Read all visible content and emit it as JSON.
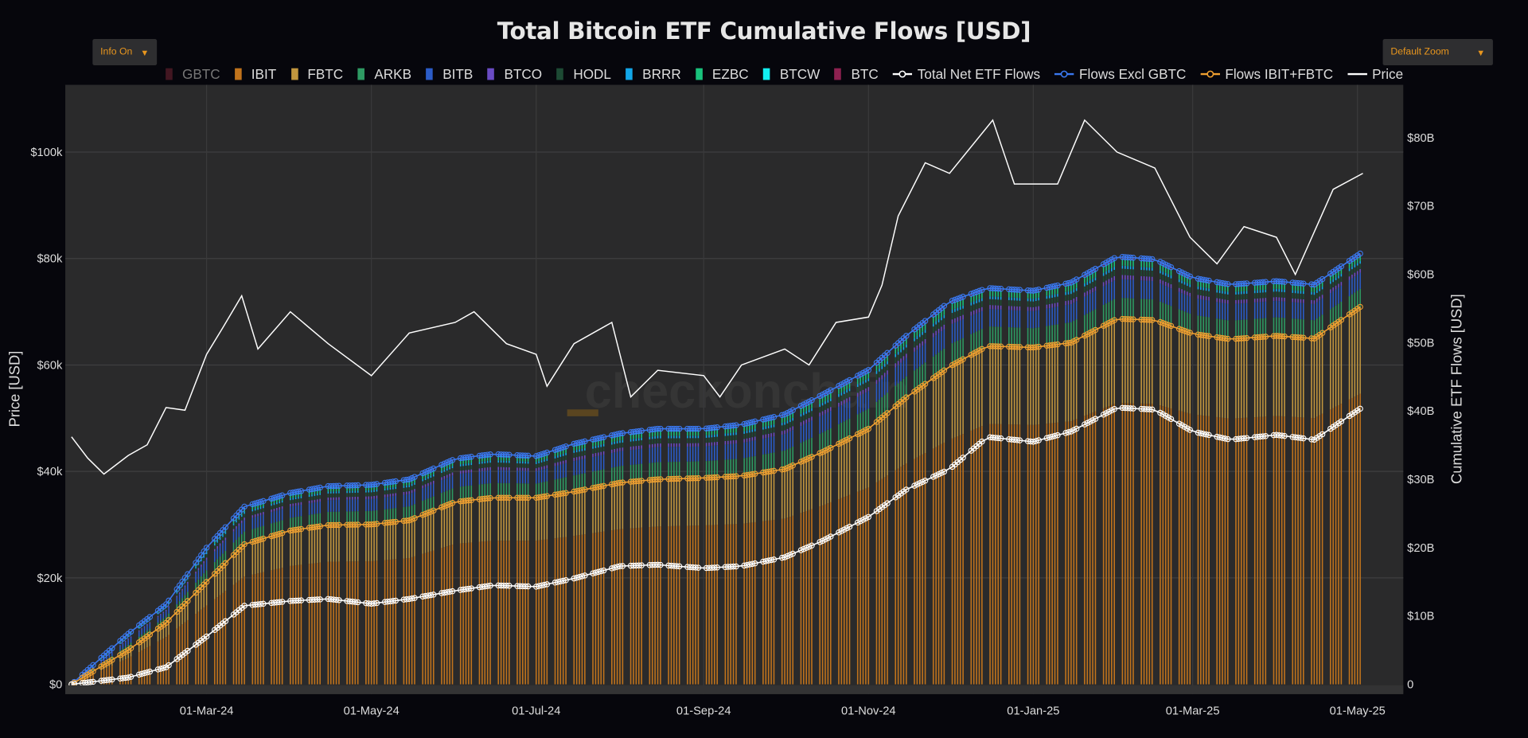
{
  "title": "Total Bitcoin ETF Cumulative Flows [USD]",
  "controls": {
    "info_label": "Info On",
    "zoom_label": "Default Zoom",
    "arrow": "▼"
  },
  "watermark": "checkonchain",
  "colors": {
    "GBTC": "#6b2230",
    "IBIT": "#c0731c",
    "FBTC": "#c2963e",
    "ARKB": "#2e9a63",
    "BITB": "#2b5cc8",
    "BTCO": "#6a4bc4",
    "HODL": "#1d4a34",
    "BRRR": "#12a6e8",
    "EZBC": "#19c27c",
    "BTCW": "#12eef0",
    "BTC": "#8e2150",
    "total": "#ffffff",
    "excl": "#3a78f0",
    "ibitfbtc": "#f0a030",
    "price": "#ffffff"
  },
  "chart_data": {
    "type": "bar",
    "title": "Total Bitcoin ETF Cumulative Flows [USD]",
    "ylabel_left": "Price [USD]",
    "ylabel_right": "Cumulative ETF Flows [USD]",
    "ylim_left": [
      0,
      110000
    ],
    "ylim_right": [
      0,
      88
    ],
    "yticks_left": [
      "$0",
      "$20k",
      "$40k",
      "$60k",
      "$80k",
      "$100k"
    ],
    "yticks_right": [
      "0",
      "$10B",
      "$20B",
      "$30B",
      "$40B",
      "$50B",
      "$60B",
      "$70B",
      "$80B"
    ],
    "xticks": [
      {
        "date": "2024-03-01",
        "label": "01-Mar-24"
      },
      {
        "date": "2024-05-01",
        "label": "01-May-24"
      },
      {
        "date": "2024-07-01",
        "label": "01-Jul-24"
      },
      {
        "date": "2024-09-01",
        "label": "01-Sep-24"
      },
      {
        "date": "2024-11-01",
        "label": "01-Nov-24"
      },
      {
        "date": "2025-01-01",
        "label": "01-Jan-25"
      },
      {
        "date": "2025-03-01",
        "label": "01-Mar-25"
      },
      {
        "date": "2025-05-01",
        "label": "01-May-25"
      }
    ],
    "grid": true,
    "legend": [
      {
        "key": "GBTC",
        "label": "GBTC",
        "kind": "bar",
        "hidden": true
      },
      {
        "key": "IBIT",
        "label": "IBIT",
        "kind": "bar"
      },
      {
        "key": "FBTC",
        "label": "FBTC",
        "kind": "bar"
      },
      {
        "key": "ARKB",
        "label": "ARKB",
        "kind": "bar"
      },
      {
        "key": "BITB",
        "label": "BITB",
        "kind": "bar"
      },
      {
        "key": "BTCO",
        "label": "BTCO",
        "kind": "bar"
      },
      {
        "key": "HODL",
        "label": "HODL",
        "kind": "bar"
      },
      {
        "key": "BRRR",
        "label": "BRRR",
        "kind": "bar"
      },
      {
        "key": "EZBC",
        "label": "EZBC",
        "kind": "bar"
      },
      {
        "key": "BTCW",
        "label": "BTCW",
        "kind": "bar"
      },
      {
        "key": "BTC",
        "label": "BTC",
        "kind": "bar"
      },
      {
        "key": "total",
        "label": "Total Net ETF Flows",
        "kind": "marker-line"
      },
      {
        "key": "excl",
        "label": "Flows Excl GBTC",
        "kind": "marker-line"
      },
      {
        "key": "ibitfbtc",
        "label": "Flows IBIT+FBTC",
        "kind": "marker-line"
      },
      {
        "key": "price",
        "label": "Price",
        "kind": "line"
      }
    ],
    "legend_position": "top",
    "units_flows": "USD billions",
    "dates": [
      "2024-01-11",
      "2024-02-01",
      "2024-02-15",
      "2024-03-01",
      "2024-03-15",
      "2024-04-01",
      "2024-04-15",
      "2024-05-01",
      "2024-05-15",
      "2024-06-01",
      "2024-06-15",
      "2024-07-01",
      "2024-07-15",
      "2024-08-01",
      "2024-08-15",
      "2024-09-01",
      "2024-09-15",
      "2024-10-01",
      "2024-10-15",
      "2024-11-01",
      "2024-11-15",
      "2024-12-01",
      "2024-12-15",
      "2025-01-01",
      "2025-01-15",
      "2025-02-01",
      "2025-02-15",
      "2025-03-01",
      "2025-03-15",
      "2025-04-01",
      "2025-04-15",
      "2025-05-03"
    ],
    "flows_excl_gbtc": [
      0,
      7.4,
      11.7,
      20,
      26,
      28,
      29,
      29.2,
      30,
      33,
      33.7,
      33.4,
      35.2,
      36.7,
      37.4,
      37.4,
      38,
      39.5,
      42.4,
      46,
      51,
      56,
      58,
      57.6,
      58.8,
      62.6,
      62.2,
      59.5,
      58.5,
      59,
      58.5,
      63.3
    ],
    "flows_ibit_fbtc": [
      0,
      5,
      9,
      15,
      20.5,
      22.5,
      23.3,
      23.4,
      24,
      26.7,
      27.3,
      27.3,
      28.2,
      29.5,
      30,
      30.2,
      30.5,
      31.5,
      34,
      37.4,
      42,
      46.5,
      49.5,
      49.3,
      50,
      53.5,
      53.3,
      51.3,
      50.5,
      51,
      50.6,
      55.5
    ],
    "total_net_flows": [
      0,
      1,
      2.5,
      7,
      11.5,
      12.2,
      12.5,
      11.8,
      12.5,
      13.7,
      14.5,
      14.3,
      15.5,
      17.3,
      17.5,
      17,
      17.3,
      18.6,
      21,
      24.5,
      28.5,
      31.5,
      36.2,
      35.5,
      37,
      40.5,
      40.2,
      37,
      35.8,
      36.5,
      35.8,
      40.6
    ],
    "ibit_share_of_ibit_fbtc": 0.77,
    "other_etf_shares_of_remainder": {
      "ARKB": 0.34,
      "BITB": 0.3,
      "BTCO": 0.07,
      "HODL": 0.1,
      "BRRR": 0.05,
      "EZBC": 0.09,
      "BTCW": 0.02,
      "BTC": 0.03
    },
    "price_dates": [
      "2024-01-11",
      "2024-01-17",
      "2024-01-23",
      "2024-02-01",
      "2024-02-08",
      "2024-02-15",
      "2024-02-22",
      "2024-03-01",
      "2024-03-07",
      "2024-03-14",
      "2024-03-20",
      "2024-04-01",
      "2024-04-15",
      "2024-05-01",
      "2024-05-15",
      "2024-06-01",
      "2024-06-08",
      "2024-06-20",
      "2024-07-01",
      "2024-07-05",
      "2024-07-15",
      "2024-07-29",
      "2024-08-05",
      "2024-08-15",
      "2024-09-01",
      "2024-09-07",
      "2024-09-15",
      "2024-10-01",
      "2024-10-10",
      "2024-10-20",
      "2024-11-01",
      "2024-11-06",
      "2024-11-12",
      "2024-11-22",
      "2024-12-01",
      "2024-12-17",
      "2024-12-25",
      "2025-01-01",
      "2025-01-10",
      "2025-01-20",
      "2025-02-01",
      "2025-02-15",
      "2025-02-28",
      "2025-03-10",
      "2025-03-20",
      "2025-04-01",
      "2025-04-08",
      "2025-04-15",
      "2025-04-22",
      "2025-05-03"
    ],
    "price_usd_k": [
      46.5,
      42.5,
      39.5,
      43,
      45,
      52,
      51.5,
      62,
      67,
      73,
      63,
      70,
      64,
      58,
      66,
      68,
      70,
      64,
      62,
      56,
      64,
      68,
      54,
      59,
      58,
      54,
      60,
      63,
      60,
      68,
      69,
      75,
      88,
      98,
      96,
      106,
      94,
      94,
      94,
      106,
      100,
      97,
      84,
      79,
      86,
      84,
      77,
      85,
      93,
      96
    ]
  }
}
